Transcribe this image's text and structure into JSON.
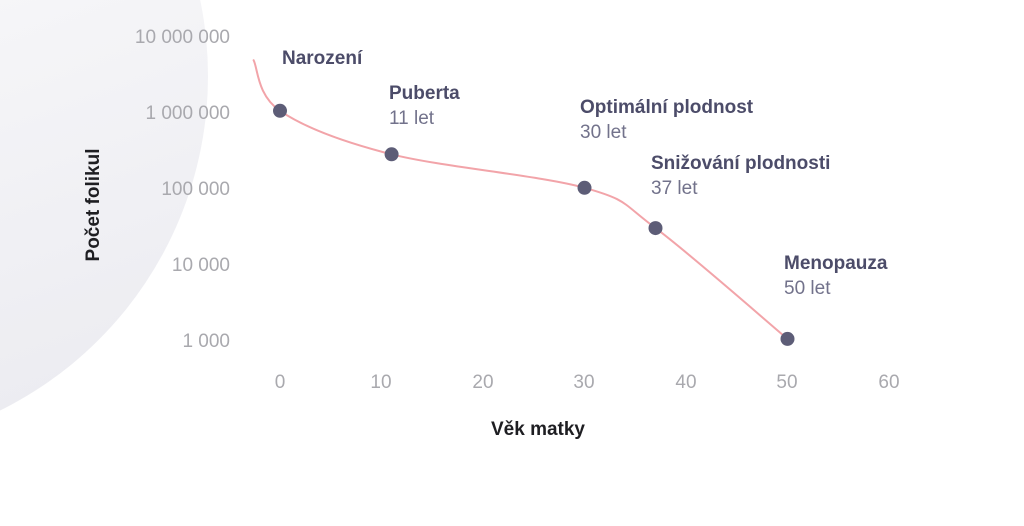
{
  "colors": {
    "background": "#ffffff",
    "decorative_circle": "#ececf1",
    "line": "#f2a4a9",
    "point": "#5d5d77",
    "annotation_title": "#4c4c69",
    "annotation_subtitle": "#72728b",
    "tick_label": "#a9a9ae",
    "axis_title": "#1e1e22"
  },
  "chart_data": {
    "type": "line",
    "title": "",
    "xlabel": "Věk matky",
    "ylabel": "Počet folikul",
    "x_scale": "linear",
    "y_scale": "log",
    "grid": "off",
    "legend": "none",
    "x_tick_labels": [
      "0",
      "10",
      "20",
      "30",
      "40",
      "50",
      "60"
    ],
    "x_tick_values": [
      0,
      10,
      20,
      30,
      40,
      50,
      60
    ],
    "y_tick_labels": [
      "10 000 000",
      "1 000 000",
      "100 000",
      "10 000",
      "1 000"
    ],
    "y_tick_values": [
      10000000,
      1000000,
      100000,
      10000,
      1000
    ],
    "xlim": [
      0,
      60
    ],
    "ylim": [
      1000,
      10000000
    ],
    "line_color": "#f2a4a9",
    "point_color": "#5d5d77",
    "curve_start": {
      "age": -2.6,
      "count": 5000000
    },
    "points": [
      {
        "age": 0,
        "count": 1100000,
        "label": "Narození",
        "sublabel": ""
      },
      {
        "age": 11,
        "count": 300000,
        "label": "Puberta",
        "sublabel": "11 let"
      },
      {
        "age": 30,
        "count": 110000,
        "label": "Optimální plodnost",
        "sublabel": "30 let"
      },
      {
        "age": 37,
        "count": 33000,
        "label": "Snižování plodnosti",
        "sublabel": "37 let"
      },
      {
        "age": 50,
        "count": 1200,
        "label": "Menopauza",
        "sublabel": "50 let"
      }
    ]
  }
}
